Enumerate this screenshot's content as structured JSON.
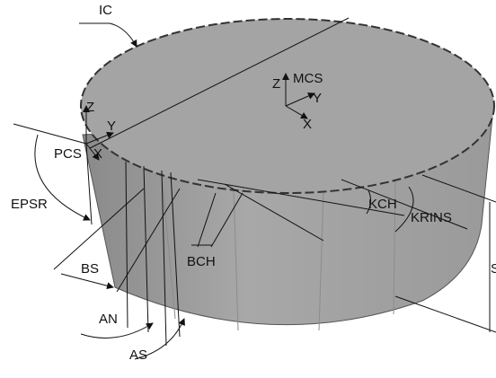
{
  "labels": {
    "ic": "IC",
    "mcs": "MCS",
    "mcs_z": "Z",
    "mcs_y": "Y",
    "mcs_x": "X",
    "pcs_z": "Z",
    "pcs_y": "Y",
    "pcs_x": "X",
    "pcs": "PCS",
    "epsr": "EPSR",
    "bs": "BS",
    "an": "AN",
    "as": "AS",
    "bch": "BCH",
    "kch": "KCH",
    "krins": "KRINS",
    "s": "S"
  }
}
